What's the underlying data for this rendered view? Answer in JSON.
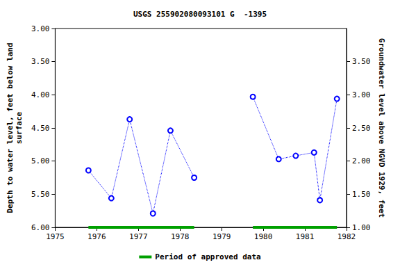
{
  "chart_data": {
    "type": "line",
    "title": "USGS 255902080093101 G  -1395",
    "y_label": "Depth to water level, feet below land\nsurface",
    "y2_label": "Groundwater level above NGVD 1929, feet",
    "xlim": [
      1975,
      1982
    ],
    "xticks": [
      1975,
      1976,
      1977,
      1978,
      1979,
      1980,
      1981,
      1982
    ],
    "ylim": [
      6.0,
      3.0
    ],
    "yticks": [
      {
        "value": 3.0,
        "label": "3.00"
      },
      {
        "value": 3.5,
        "label": "3.50"
      },
      {
        "value": 4.0,
        "label": "4.00"
      },
      {
        "value": 4.5,
        "label": "4.50"
      },
      {
        "value": 5.0,
        "label": "5.00"
      },
      {
        "value": 5.5,
        "label": "5.50"
      },
      {
        "value": 6.0,
        "label": "6.00"
      }
    ],
    "y2lim": [
      1.0,
      4.0
    ],
    "y2ticks": [
      {
        "value": 1.0,
        "label": "1.00"
      },
      {
        "value": 1.5,
        "label": "1.50"
      },
      {
        "value": 2.0,
        "label": "2.00"
      },
      {
        "value": 2.5,
        "label": "2.50"
      },
      {
        "value": 3.0,
        "label": "3.00"
      },
      {
        "value": 3.5,
        "label": "3.50"
      }
    ],
    "grid": false,
    "legend": "bottom",
    "series": [
      {
        "color": "#0000ff",
        "marker": "circle",
        "line_style": "dotted",
        "x": [
          1975.8,
          1976.35,
          1976.79,
          1977.35,
          1977.77,
          1978.34
        ],
        "values": [
          5.14,
          5.56,
          4.37,
          5.79,
          4.54,
          5.25
        ]
      },
      {
        "color": "#0000ff",
        "marker": "circle",
        "line_style": "dotted",
        "x": [
          1979.75,
          1980.37,
          1980.78,
          1981.22,
          1981.36,
          1981.77
        ],
        "values": [
          4.03,
          4.97,
          4.92,
          4.87,
          5.59,
          4.06
        ]
      },
      {
        "name": "Period of approved data",
        "type": "period",
        "color": "#00a000",
        "ranges": [
          [
            1975.8,
            1978.34
          ],
          [
            1979.75,
            1981.77
          ]
        ]
      }
    ]
  }
}
